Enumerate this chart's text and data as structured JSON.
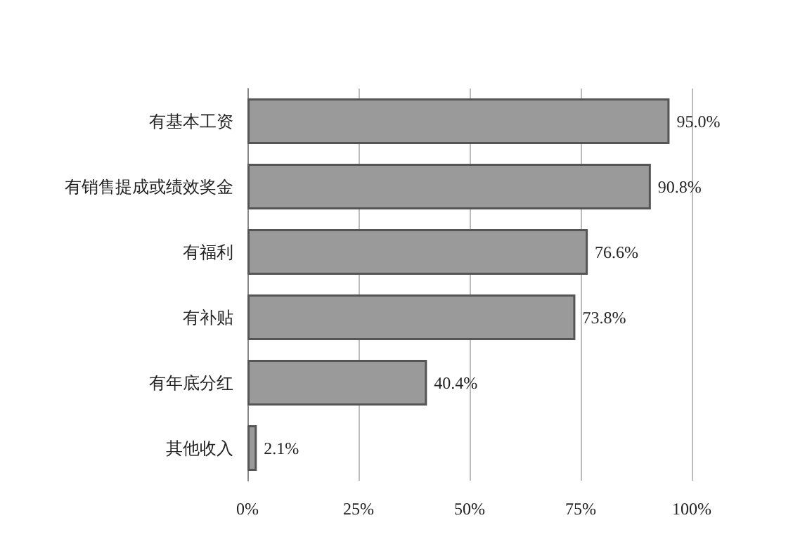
{
  "chart_data": {
    "type": "bar",
    "orientation": "horizontal",
    "categories": [
      "有基本工资",
      "有销售提成或绩效奖金",
      "有福利",
      "有补贴",
      "有年底分红",
      "其他收入"
    ],
    "values": [
      95.0,
      90.8,
      76.6,
      73.8,
      40.4,
      2.1
    ],
    "value_labels": [
      "95.0%",
      "90.8%",
      "76.6%",
      "73.8%",
      "40.4%",
      "2.1%"
    ],
    "color": "#9a9a9a",
    "xlim": [
      0,
      100
    ],
    "xticks": [
      {
        "value": 0,
        "label": "0%"
      },
      {
        "value": 25,
        "label": "25%"
      },
      {
        "value": 50,
        "label": "50%"
      },
      {
        "value": 75,
        "label": "75%"
      },
      {
        "value": 100,
        "label": "100%"
      }
    ],
    "grid": "x"
  }
}
